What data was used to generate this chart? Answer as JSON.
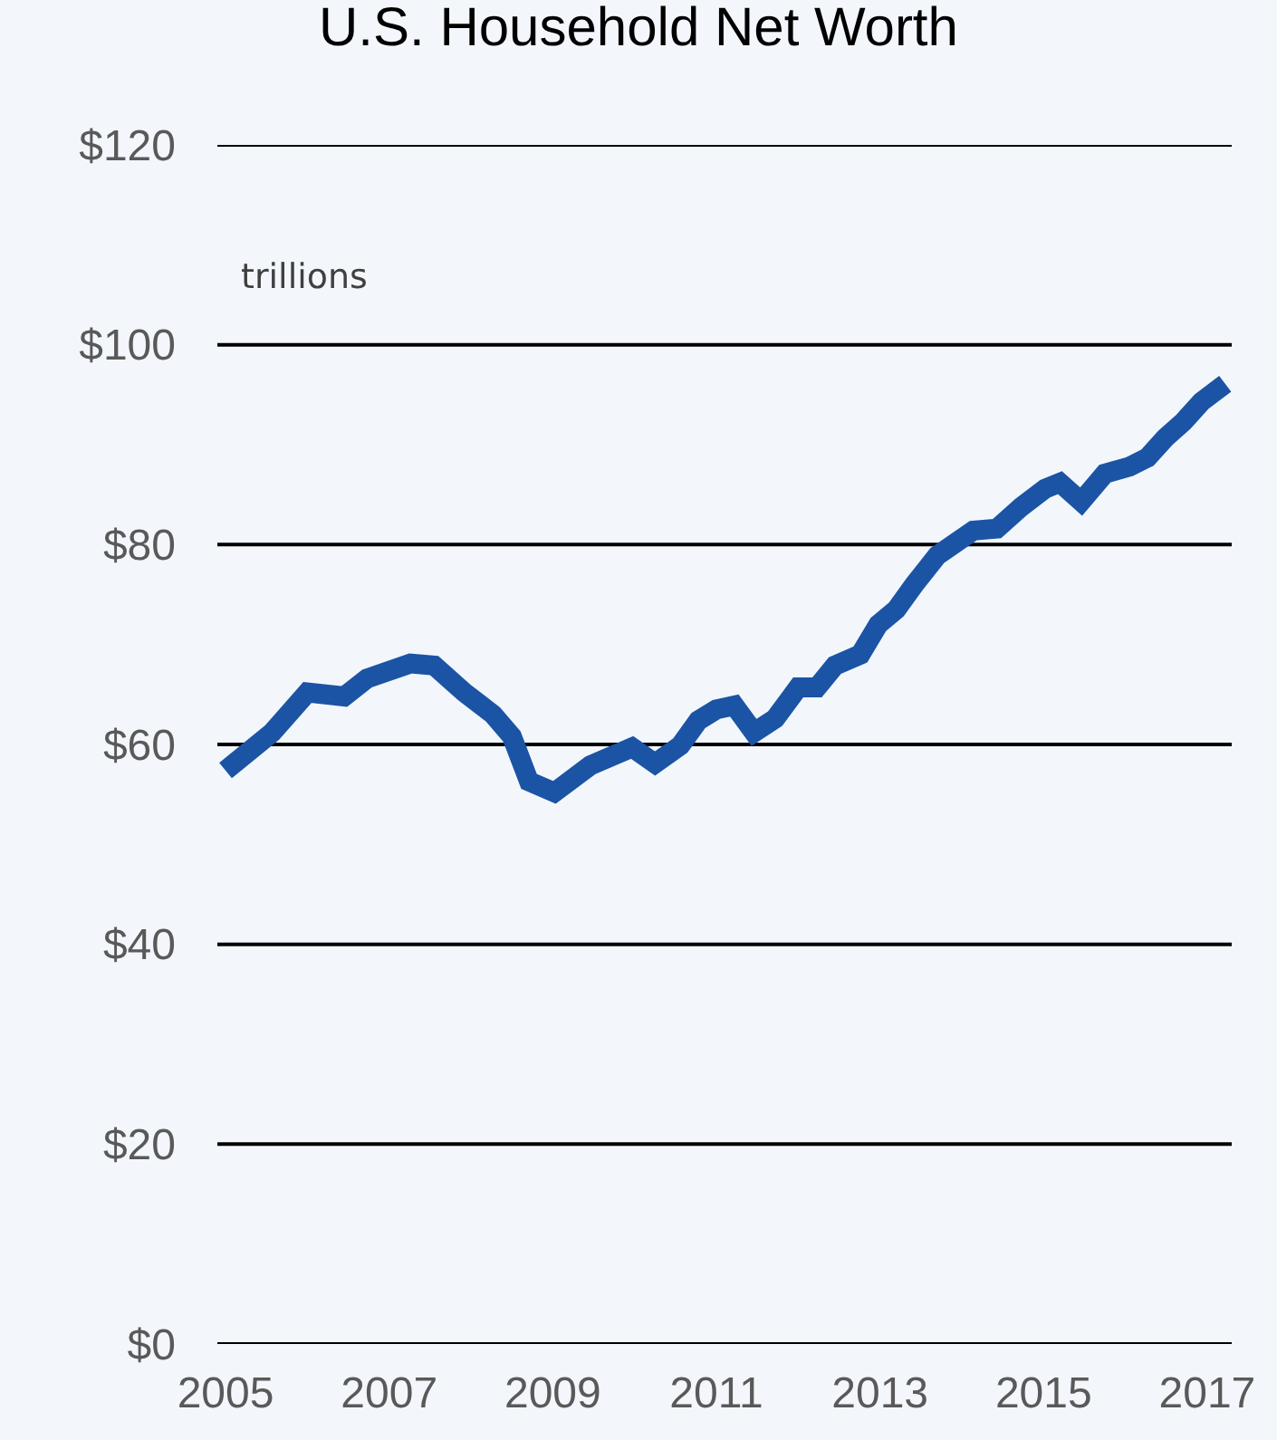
{
  "chart_data": {
    "type": "line",
    "title": "U.S. Household Net Worth",
    "annotations": [
      "trillions"
    ],
    "x": [
      2005.0,
      2005.57,
      2006.0,
      2006.45,
      2006.73,
      2007.26,
      2007.55,
      2007.92,
      2008.27,
      2008.5,
      2008.71,
      2009.02,
      2009.46,
      2009.97,
      2010.25,
      2010.56,
      2010.78,
      2011.0,
      2011.22,
      2011.46,
      2011.72,
      2012.0,
      2012.23,
      2012.45,
      2012.76,
      2012.98,
      2013.2,
      2013.42,
      2013.7,
      2014.14,
      2014.43,
      2014.73,
      2015.02,
      2015.2,
      2015.46,
      2015.75,
      2016.05,
      2016.27,
      2016.49,
      2016.71,
      2016.93,
      2017.22
    ],
    "series": [
      {
        "color": "#1b54a5",
        "values": [
          57.4,
          61.2,
          65.2,
          64.8,
          66.6,
          68.1,
          67.9,
          65.2,
          63.0,
          60.8,
          56.3,
          55.2,
          57.9,
          59.7,
          58.1,
          59.9,
          62.4,
          63.5,
          63.9,
          61.2,
          62.6,
          65.7,
          65.7,
          67.9,
          69.0,
          72.0,
          73.5,
          76.0,
          78.9,
          81.4,
          81.6,
          83.8,
          85.6,
          86.2,
          84.3,
          87.1,
          87.8,
          88.7,
          90.7,
          92.3,
          94.3,
          96.1
        ]
      }
    ],
    "xlim": [
      2004.9,
      2017.3
    ],
    "xticks": [
      2005,
      2007,
      2009,
      2011,
      2013,
      2015,
      2017
    ],
    "ylim": [
      0,
      120
    ],
    "yticks": [
      {
        "value": 0,
        "label": "$0"
      },
      {
        "value": 20,
        "label": "$20"
      },
      {
        "value": 40,
        "label": "$40"
      },
      {
        "value": 60,
        "label": "$60"
      },
      {
        "value": 80,
        "label": "$80"
      },
      {
        "value": 100,
        "label": "$100"
      },
      {
        "value": 120,
        "label": "$120"
      }
    ],
    "grid": "y",
    "marker": "none",
    "line_style": "solid"
  }
}
